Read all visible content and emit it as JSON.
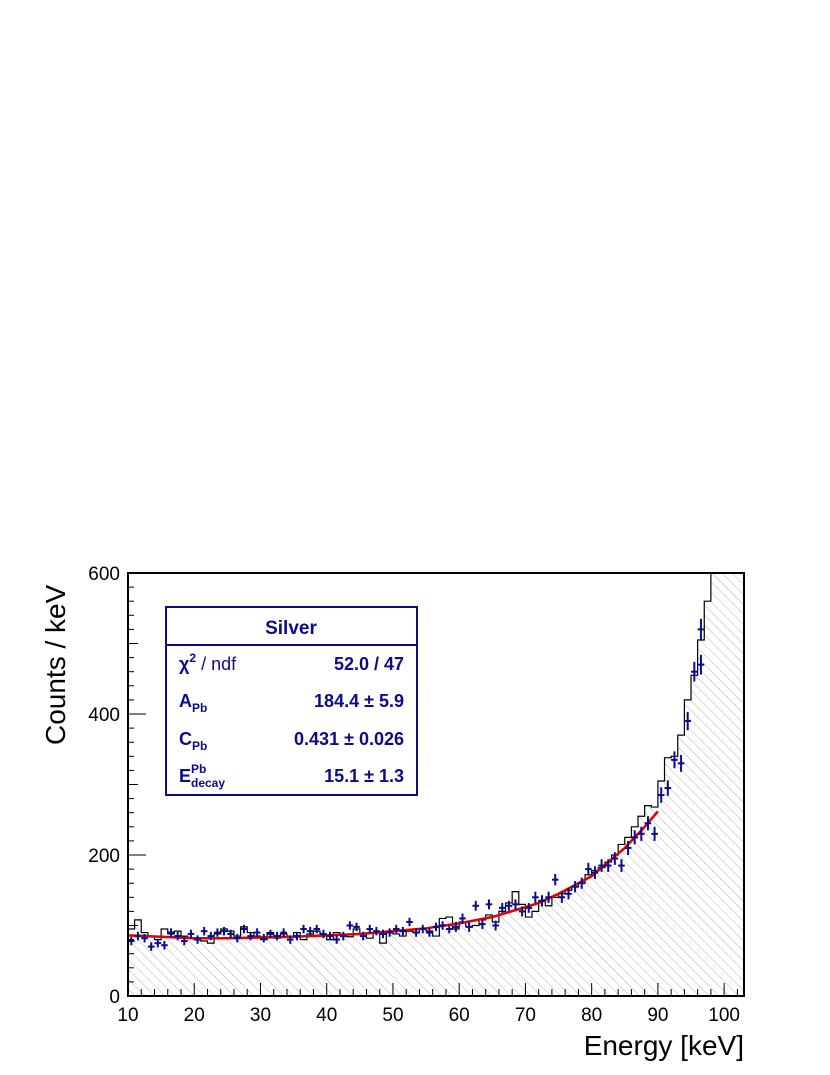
{
  "chart_data": {
    "type": "histogram",
    "xlabel": "Energy [keV]",
    "ylabel": "Counts / keV",
    "xlim": [
      10,
      103
    ],
    "ylim": [
      0,
      600
    ],
    "x_ticks": [
      10,
      20,
      30,
      40,
      50,
      60,
      70,
      80,
      90,
      100
    ],
    "y_ticks": [
      0,
      200,
      400,
      600
    ],
    "colors": {
      "data": "#0b0b8c",
      "fit": "#e00000",
      "histogram": "#000000",
      "box": "#0b0b8c"
    },
    "histogram": {
      "name": "simulation",
      "bin_width": 1,
      "bin_starts": [
        10,
        11,
        12,
        13,
        14,
        15,
        16,
        17,
        18,
        19,
        20,
        21,
        22,
        23,
        24,
        25,
        26,
        27,
        28,
        29,
        30,
        31,
        32,
        33,
        34,
        35,
        36,
        37,
        38,
        39,
        40,
        41,
        42,
        43,
        44,
        45,
        46,
        47,
        48,
        49,
        50,
        51,
        52,
        53,
        54,
        55,
        56,
        57,
        58,
        59,
        60,
        61,
        62,
        63,
        64,
        65,
        66,
        67,
        68,
        69,
        70,
        71,
        72,
        73,
        74,
        75,
        76,
        77,
        78,
        79,
        80,
        81,
        82,
        83,
        84,
        85,
        86,
        87,
        88,
        89,
        90,
        91,
        92,
        93,
        94,
        95,
        96,
        97,
        98,
        99,
        100,
        101,
        102
      ],
      "values": [
        95,
        108,
        90,
        85,
        80,
        95,
        88,
        92,
        85,
        82,
        80,
        78,
        75,
        88,
        95,
        92,
        85,
        98,
        90,
        85,
        80,
        90,
        82,
        88,
        85,
        90,
        80,
        88,
        92,
        85,
        80,
        90,
        86,
        84,
        95,
        88,
        82,
        90,
        75,
        92,
        88,
        85,
        92,
        90,
        95,
        92,
        85,
        110,
        112,
        95,
        105,
        98,
        100,
        108,
        115,
        105,
        120,
        132,
        148,
        130,
        112,
        120,
        135,
        128,
        140,
        145,
        150,
        155,
        160,
        172,
        178,
        182,
        190,
        200,
        215,
        225,
        240,
        255,
        270,
        268,
        305,
        338,
        340,
        370,
        420,
        455,
        505,
        560,
        600,
        600,
        600,
        600,
        600
      ]
    },
    "points": {
      "name": "data",
      "x": [
        10.5,
        11.5,
        12.5,
        13.5,
        14.5,
        15.5,
        16.5,
        17.5,
        18.5,
        19.5,
        20.5,
        21.5,
        22.5,
        23.5,
        24.5,
        25.5,
        26.5,
        27.5,
        28.5,
        29.5,
        30.5,
        31.5,
        32.5,
        33.5,
        34.5,
        35.5,
        36.5,
        37.5,
        38.5,
        39.5,
        40.5,
        41.5,
        42.5,
        43.5,
        44.5,
        45.5,
        46.5,
        47.5,
        48.5,
        49.5,
        50.5,
        51.5,
        52.5,
        53.5,
        54.5,
        55.5,
        56.5,
        57.5,
        58.5,
        59.5,
        60.5,
        61.5,
        62.5,
        63.5,
        64.5,
        65.5,
        66.5,
        67.5,
        68.5,
        69.5,
        70.5,
        71.5,
        72.5,
        73.5,
        74.5,
        75.5,
        76.5,
        77.5,
        78.5,
        79.5,
        80.5,
        81.5,
        82.5,
        83.5,
        84.5,
        85.5,
        86.5,
        87.5,
        88.5,
        89.5,
        90.5,
        91.5,
        92.5,
        93.5,
        94.5,
        95.5,
        96.5
      ],
      "y": [
        78,
        85,
        82,
        70,
        75,
        72,
        90,
        85,
        78,
        88,
        80,
        92,
        85,
        90,
        92,
        88,
        82,
        95,
        85,
        90,
        82,
        88,
        85,
        90,
        80,
        85,
        95,
        92,
        95,
        88,
        85,
        80,
        85,
        100,
        98,
        85,
        95,
        92,
        88,
        90,
        95,
        92,
        105,
        90,
        95,
        90,
        98,
        100,
        95,
        98,
        110,
        98,
        128,
        102,
        130,
        100,
        125,
        128,
        130,
        120,
        125,
        140,
        135,
        140,
        165,
        140,
        145,
        155,
        160,
        180,
        175,
        185,
        185,
        195,
        185,
        210,
        225,
        230,
        245,
        230,
        285,
        295,
        335,
        330,
        390,
        460,
        470
      ],
      "y_err": [
        6,
        6,
        6,
        6,
        6,
        6,
        6,
        6,
        6,
        6,
        6,
        6,
        6,
        6,
        6,
        6,
        6,
        6,
        6,
        6,
        6,
        6,
        6,
        6,
        6,
        6,
        6,
        6,
        6,
        6,
        6,
        6,
        6,
        6,
        6,
        6,
        6,
        6,
        6,
        6,
        6,
        6,
        6,
        6,
        6,
        6,
        6,
        6,
        6,
        7,
        7,
        7,
        7,
        7,
        7,
        7,
        7,
        7,
        7,
        7,
        7,
        8,
        8,
        8,
        8,
        8,
        8,
        8,
        8,
        9,
        9,
        9,
        9,
        9,
        9,
        10,
        10,
        10,
        10,
        10,
        11,
        11,
        12,
        12,
        13,
        14,
        14
      ]
    },
    "extra_points": {
      "x": [
        96.5
      ],
      "y": [
        520
      ],
      "y_err": [
        15
      ]
    },
    "fit": {
      "name": "fit",
      "x": [
        10,
        15,
        20,
        25,
        30,
        35,
        40,
        45,
        50,
        55,
        60,
        65,
        70,
        72,
        75,
        80,
        85,
        88,
        90
      ],
      "y": [
        86,
        84,
        82,
        82,
        83,
        84,
        86,
        88,
        92,
        96,
        103,
        112,
        126,
        132,
        145,
        170,
        210,
        240,
        262
      ]
    },
    "stats_box": {
      "title": "Silver",
      "rows": [
        {
          "main": "χ",
          "sup": "2",
          "sub": "",
          "suffix": " / ndf",
          "value": "52.0 / 47"
        },
        {
          "main": "A",
          "sup": "",
          "sub": "Pb",
          "suffix": "",
          "value": "184.4 ± 5.9"
        },
        {
          "main": "C",
          "sup": "",
          "sub": "Pb",
          "suffix": "",
          "value": "0.431 ± 0.026"
        },
        {
          "main": "E",
          "sup": "Pb",
          "sub": "decay",
          "suffix": "",
          "value": "15.1  ± 1.3"
        }
      ]
    }
  }
}
